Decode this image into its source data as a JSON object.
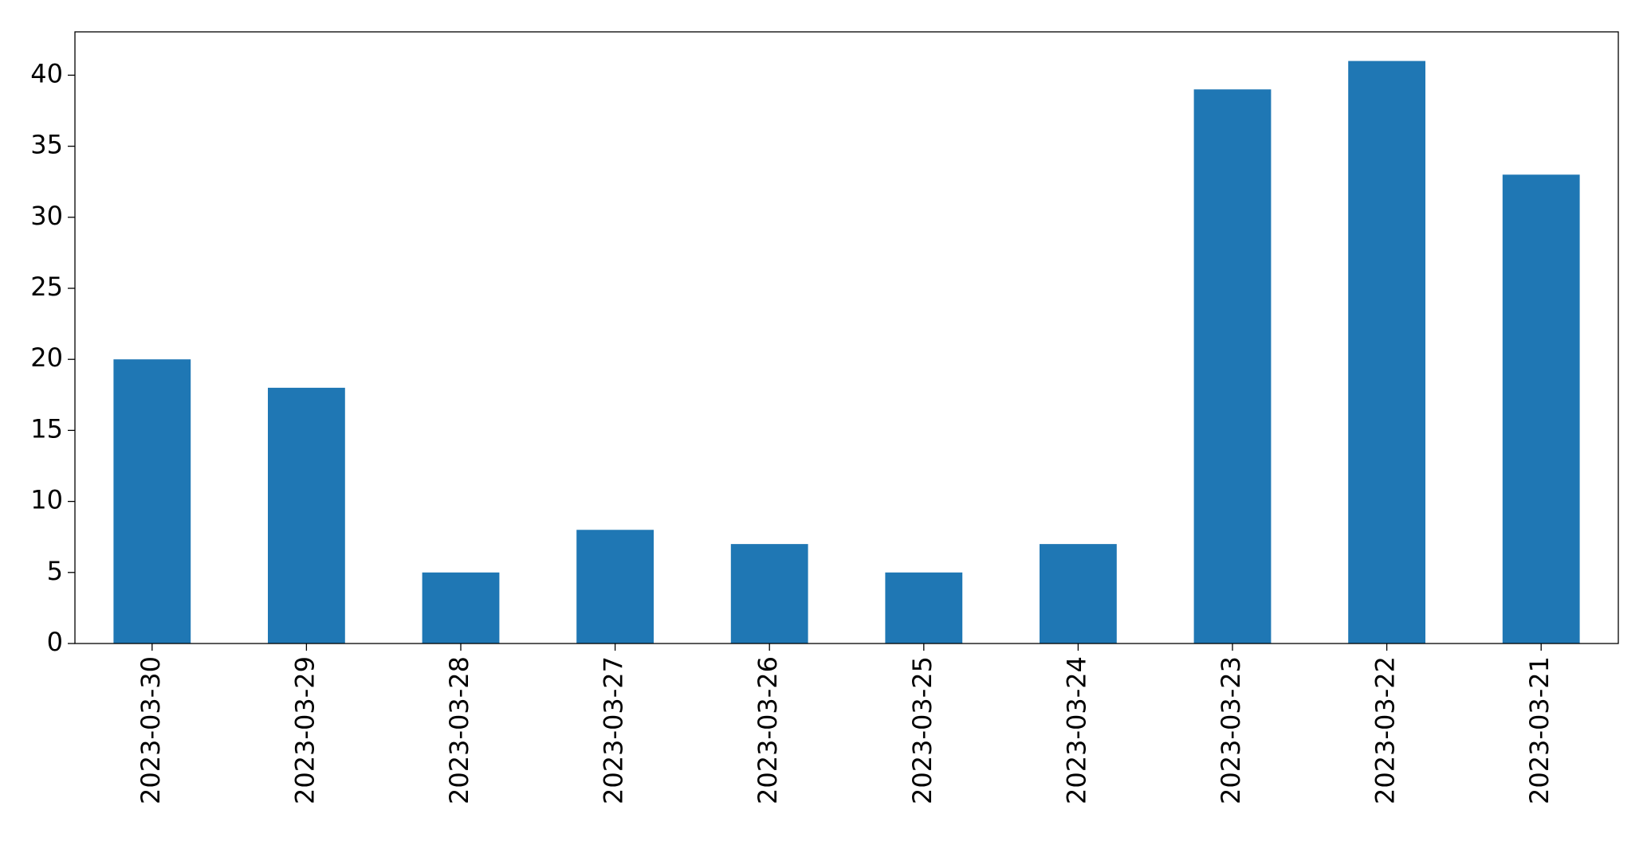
{
  "chart_data": {
    "type": "bar",
    "categories": [
      "2023-03-30",
      "2023-03-29",
      "2023-03-28",
      "2023-03-27",
      "2023-03-26",
      "2023-03-25",
      "2023-03-24",
      "2023-03-23",
      "2023-03-22",
      "2023-03-21"
    ],
    "values": [
      20,
      18,
      5,
      8,
      7,
      5,
      7,
      39,
      41,
      33
    ],
    "color": "#1f77b4",
    "ylim": [
      0,
      43.05
    ],
    "yticks": [
      0,
      5,
      10,
      15,
      20,
      25,
      30,
      35,
      40
    ],
    "grid": false
  }
}
